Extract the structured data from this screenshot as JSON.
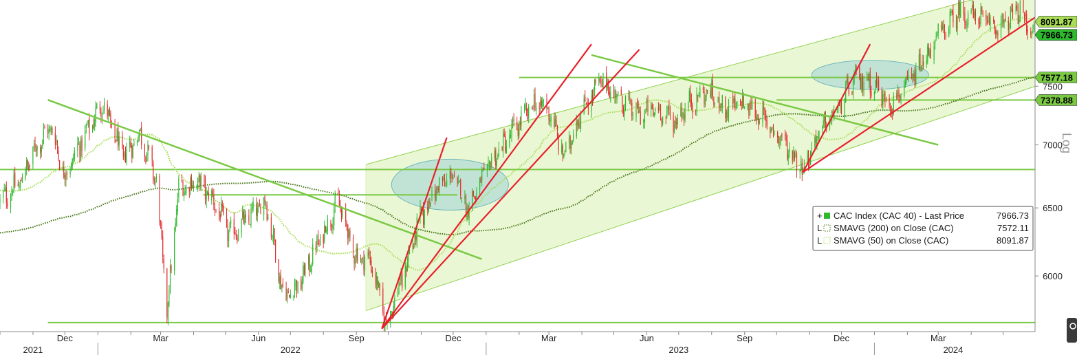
{
  "chart_data": {
    "type": "candlestick",
    "y_scale": "log",
    "scale_label": "Log",
    "ylim": [
      5620,
      8300
    ],
    "y_ticks": [
      6000,
      6500,
      7000,
      7500
    ],
    "y_tick_labels": [
      "6000",
      "6500",
      "7000",
      "7500"
    ],
    "x_range": [
      "2021-10-01",
      "2024-05-31"
    ],
    "month_ticks": [
      {
        "label": "Dec",
        "date": "2021-12-01"
      },
      {
        "label": "Mar",
        "date": "2022-03-01"
      },
      {
        "label": "Jun",
        "date": "2022-06-01"
      },
      {
        "label": "Sep",
        "date": "2022-09-01"
      },
      {
        "label": "Dec",
        "date": "2022-12-01"
      },
      {
        "label": "Mar",
        "date": "2023-03-01"
      },
      {
        "label": "Jun",
        "date": "2023-06-01"
      },
      {
        "label": "Sep",
        "date": "2023-09-01"
      },
      {
        "label": "Dec",
        "date": "2023-12-01"
      },
      {
        "label": "Mar",
        "date": "2024-03-01"
      }
    ],
    "year_labels": [
      {
        "label": "2021",
        "date": "2021-11-01"
      },
      {
        "label": "2022",
        "date": "2022-07-01"
      },
      {
        "label": "2023",
        "date": "2023-07-01"
      },
      {
        "label": "2024",
        "date": "2024-03-15"
      }
    ],
    "year_boundaries": [
      "2022-01-01",
      "2023-01-01",
      "2024-01-01"
    ],
    "price_path": [
      [
        "2021-10-01",
        6550
      ],
      [
        "2021-10-20",
        6700
      ],
      [
        "2021-11-05",
        7000
      ],
      [
        "2021-11-18",
        7150
      ],
      [
        "2021-12-01",
        6750
      ],
      [
        "2021-12-15",
        7000
      ],
      [
        "2022-01-05",
        7350
      ],
      [
        "2022-01-25",
        6900
      ],
      [
        "2022-02-10",
        7100
      ],
      [
        "2022-02-25",
        6700
      ],
      [
        "2022-03-07",
        5760
      ],
      [
        "2022-03-18",
        6650
      ],
      [
        "2022-04-05",
        6700
      ],
      [
        "2022-04-20",
        6550
      ],
      [
        "2022-05-05",
        6300
      ],
      [
        "2022-05-20",
        6400
      ],
      [
        "2022-06-08",
        6550
      ],
      [
        "2022-06-25",
        5850
      ],
      [
        "2022-07-10",
        5950
      ],
      [
        "2022-07-25",
        6200
      ],
      [
        "2022-08-15",
        6550
      ],
      [
        "2022-08-30",
        6150
      ],
      [
        "2022-09-15",
        6100
      ],
      [
        "2022-09-29",
        5670
      ],
      [
        "2022-10-15",
        6000
      ],
      [
        "2022-10-30",
        6400
      ],
      [
        "2022-11-15",
        6650
      ],
      [
        "2022-12-01",
        6750
      ],
      [
        "2022-12-15",
        6500
      ],
      [
        "2023-01-05",
        6850
      ],
      [
        "2023-01-25",
        7100
      ],
      [
        "2023-02-15",
        7350
      ],
      [
        "2023-03-01",
        7300
      ],
      [
        "2023-03-15",
        6900
      ],
      [
        "2023-04-01",
        7300
      ],
      [
        "2023-04-20",
        7550
      ],
      [
        "2023-05-05",
        7400
      ],
      [
        "2023-05-25",
        7250
      ],
      [
        "2023-06-10",
        7300
      ],
      [
        "2023-06-28",
        7200
      ],
      [
        "2023-07-10",
        7350
      ],
      [
        "2023-07-28",
        7450
      ],
      [
        "2023-08-15",
        7300
      ],
      [
        "2023-08-30",
        7350
      ],
      [
        "2023-09-15",
        7250
      ],
      [
        "2023-10-05",
        7050
      ],
      [
        "2023-10-26",
        6810
      ],
      [
        "2023-11-10",
        7100
      ],
      [
        "2023-11-28",
        7300
      ],
      [
        "2023-12-12",
        7550
      ],
      [
        "2023-12-28",
        7550
      ],
      [
        "2024-01-15",
        7350
      ],
      [
        "2024-01-28",
        7450
      ],
      [
        "2024-02-15",
        7700
      ],
      [
        "2024-03-01",
        7950
      ],
      [
        "2024-03-20",
        8180
      ],
      [
        "2024-04-05",
        8150
      ],
      [
        "2024-04-20",
        8050
      ],
      [
        "2024-05-01",
        8050
      ],
      [
        "2024-05-15",
        8200
      ],
      [
        "2024-05-31",
        7967
      ]
    ],
    "series": [
      {
        "name": "CAC Index (CAC 40) - Last Price",
        "last": "7966.73",
        "color": "#2eb82e",
        "style": "candles"
      },
      {
        "name": "SMAVG (200)  on Close (CAC)",
        "last": "7572.11",
        "color": "#4d7a1f",
        "style": "dotted"
      },
      {
        "name": "SMAVG (50)  on Close (CAC)",
        "last": "8091.87",
        "color": "#a8dd55",
        "style": "dotted"
      }
    ],
    "horizontal_levels": [
      {
        "value": 6800,
        "from": "2021-10-01"
      },
      {
        "value": 5680,
        "from": "2021-11-15"
      },
      {
        "value": 6600,
        "from": "2022-04-10",
        "to": "2022-12-05"
      },
      {
        "value": 7577.18,
        "from": "2023-02-01"
      },
      {
        "value": 7378.88,
        "from": "2023-10-01"
      }
    ],
    "green_trendlines": [
      {
        "from": [
          "2021-11-15",
          7380
        ],
        "to": [
          "2022-12-28",
          6120
        ]
      },
      {
        "from": [
          "2023-04-10",
          7780
        ],
        "to": [
          "2024-03-01",
          7000
        ]
      }
    ],
    "red_trendlines": [
      {
        "from": [
          "2022-09-25",
          5640
        ],
        "to": [
          "2022-11-25",
          7060
        ]
      },
      {
        "from": [
          "2022-09-25",
          5640
        ],
        "to": [
          "2023-04-10",
          7880
        ]
      },
      {
        "from": [
          "2022-09-25",
          5640
        ],
        "to": [
          "2023-05-25",
          7830
        ]
      },
      {
        "from": [
          "2023-10-26",
          6780
        ],
        "to": [
          "2023-12-28",
          7880
        ]
      },
      {
        "from": [
          "2023-10-26",
          6780
        ],
        "to": [
          "2024-06-10",
          8200
        ]
      }
    ],
    "channel": {
      "from_date": "2022-09-10",
      "to_date": "2024-06-10",
      "upper_start": 6840,
      "upper_end": 8500,
      "lower_start": 5760,
      "lower_end": 7530
    },
    "consolidation_zones": [
      {
        "center": [
          "2022-11-28",
          6680
        ],
        "rx_days": 55,
        "ry_value": 200
      },
      {
        "center": [
          "2023-12-28",
          7600
        ],
        "rx_days": 55,
        "ry_value": 130
      }
    ],
    "right_tags": [
      {
        "value": 8091.87,
        "label": "8091.87",
        "color": "#a8dd55"
      },
      {
        "value": 7966.73,
        "label": "7966.73",
        "color": "#2eb82e"
      },
      {
        "value": 7577.18,
        "label": "7577.18",
        "color": "#7ac943"
      },
      {
        "value": 7378.88,
        "label": "7378.88",
        "color": "#7ac943"
      }
    ]
  }
}
